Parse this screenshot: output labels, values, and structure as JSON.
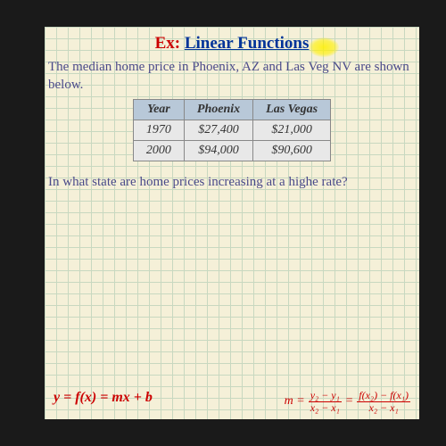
{
  "title": {
    "ex": "Ex:",
    "main": "Linear Functions"
  },
  "intro": "The median home price in Phoenix, AZ and Las Veg\nNV are shown below.",
  "table": {
    "headers": [
      "Year",
      "Phoenix",
      "Las Vegas"
    ],
    "rows": [
      [
        "1970",
        "$27,400",
        "$21,000"
      ],
      [
        "2000",
        "$94,000",
        "$90,600"
      ]
    ],
    "header_bg": "#b8c8d8",
    "cell_bg": "#e8e8e8"
  },
  "question": "In what state are home prices increasing at a highe\nrate?",
  "formula1": "y = f(x) = mx + b",
  "formula2": {
    "lhs": "m =",
    "frac1_num": "y₂ − y₁",
    "frac1_den": "x₂ − x₁",
    "eq": " = ",
    "frac2_num": "f(x₂) − f(x₁)",
    "frac2_den": "x₂ − x₁"
  },
  "colors": {
    "grid_bg": "#f5f0d8",
    "grid_line": "#c8d8c0",
    "text_body": "#4a4a8a",
    "red": "#c00",
    "blue": "#003399",
    "highlight": "#fff000"
  }
}
